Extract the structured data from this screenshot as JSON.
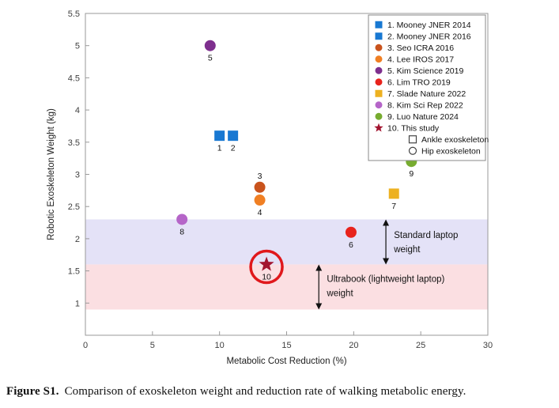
{
  "figure": {
    "caption_label": "Figure S1.",
    "caption_text": "Comparison of exoskeleton weight and reduction rate of walking metabolic energy."
  },
  "chart_data": {
    "type": "scatter",
    "title": "",
    "xlabel": "Metabolic Cost Reduction (%)",
    "ylabel": "Robotic Exoskeleton Weight (kg)",
    "xlim": [
      0,
      30
    ],
    "ylim": [
      0.5,
      5.5
    ],
    "xticks": [
      0,
      5,
      10,
      15,
      20,
      25,
      30
    ],
    "yticks": [
      1,
      1.5,
      2,
      2.5,
      3,
      3.5,
      4,
      4.5,
      5,
      5.5
    ],
    "grid": false,
    "legend_position": "top-right",
    "axis_color": "#9a9a9a",
    "tick_label_color": "#404040",
    "points": [
      {
        "id": "1",
        "label": "1. Mooney JNER 2014",
        "x": 10.0,
        "y": 3.6,
        "marker": "square",
        "color": "#1878d2",
        "number_pos": "below"
      },
      {
        "id": "2",
        "label": "2. Mooney JNER 2016",
        "x": 11.0,
        "y": 3.6,
        "marker": "square",
        "color": "#1878d2",
        "number_pos": "below"
      },
      {
        "id": "3",
        "label": "3. Seo ICRA 2016",
        "x": 13.0,
        "y": 2.8,
        "marker": "circle",
        "color": "#c9531d",
        "number_pos": "above"
      },
      {
        "id": "4",
        "label": "4. Lee IROS 2017",
        "x": 13.0,
        "y": 2.6,
        "marker": "circle",
        "color": "#f07f23",
        "number_pos": "below"
      },
      {
        "id": "5",
        "label": "5. Kim Science 2019",
        "x": 9.3,
        "y": 5.0,
        "marker": "circle",
        "color": "#7e2f8e",
        "number_pos": "below"
      },
      {
        "id": "6",
        "label": "6. Lim TRO 2019",
        "x": 19.8,
        "y": 2.1,
        "marker": "circle",
        "color": "#e8231c",
        "number_pos": "below"
      },
      {
        "id": "7",
        "label": "7. Slade Nature 2022",
        "x": 23.0,
        "y": 2.7,
        "marker": "square",
        "color": "#edb120",
        "number_pos": "below"
      },
      {
        "id": "8",
        "label": "8. Kim Sci Rep 2022",
        "x": 7.2,
        "y": 2.3,
        "marker": "circle",
        "color": "#b565c8",
        "number_pos": "below"
      },
      {
        "id": "9",
        "label": "9. Luo Nature 2024",
        "x": 24.3,
        "y": 3.2,
        "marker": "circle",
        "color": "#77ac30",
        "number_pos": "below"
      },
      {
        "id": "10",
        "label": "10. This study",
        "x": 13.5,
        "y": 1.6,
        "marker": "star",
        "color": "#a2142f",
        "number_pos": "below",
        "highlight_circle": true
      }
    ],
    "marker_legend": [
      {
        "marker": "square-open",
        "label": "Ankle exoskeleton"
      },
      {
        "marker": "circle-open",
        "label": "Hip exoskeleton"
      }
    ],
    "bands": [
      {
        "ymin": 1.6,
        "ymax": 2.3,
        "color": "#e4e2f7",
        "name": "standard-laptop-band"
      },
      {
        "ymin": 0.9,
        "ymax": 1.6,
        "color": "#fbdfe2",
        "name": "ultrabook-band"
      }
    ],
    "annotations": [
      {
        "name": "standard-laptop-annotation",
        "text_lines": [
          "Standard laptop",
          "weight"
        ],
        "arrow_x": 22.4,
        "y_from": 1.6,
        "y_to": 2.3,
        "text_x": 23.0,
        "text_y": 1.95
      },
      {
        "name": "ultrabook-annotation",
        "text_lines": [
          "Ultrabook (lightweight laptop)",
          "weight"
        ],
        "arrow_x": 17.4,
        "y_from": 0.9,
        "y_to": 1.6,
        "text_x": 18.0,
        "text_y": 1.27
      }
    ],
    "highlight": {
      "color": "#e0181c"
    }
  }
}
